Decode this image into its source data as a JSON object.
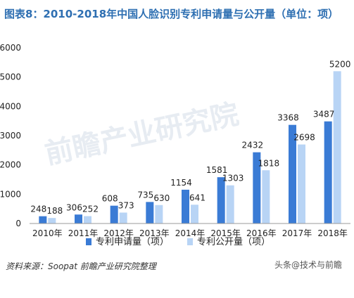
{
  "title": "图表8：2010-2018年中国人脸识别专利申请量与公开量（单位：项）",
  "source_label": "资料来源：Soopat 前瞻产业研究院整理",
  "watermark_text": "头条@技术与前瞻",
  "logo_text": "前瞻产业研究院",
  "colors": {
    "series1": "#3a7bd5",
    "series2": "#b8d4f5",
    "title": "#2e6fb2"
  },
  "chart_data": {
    "type": "bar",
    "categories": [
      "2010年",
      "2011年",
      "2012年",
      "2013年",
      "2014年",
      "2015年",
      "2016年",
      "2017年",
      "2018年"
    ],
    "series": [
      {
        "name": "专利申请量（项）",
        "values": [
          248,
          306,
          608,
          735,
          1154,
          1581,
          2432,
          3368,
          3487
        ]
      },
      {
        "name": "专利公开量（项）",
        "values": [
          188,
          252,
          373,
          630,
          641,
          1303,
          1818,
          2698,
          5200
        ]
      }
    ],
    "ylim": [
      0,
      6000
    ],
    "yticks": [
      0,
      1000,
      2000,
      3000,
      4000,
      5000,
      6000
    ],
    "xlabel": "",
    "ylabel": "",
    "grid": false,
    "legend": "bottom"
  }
}
